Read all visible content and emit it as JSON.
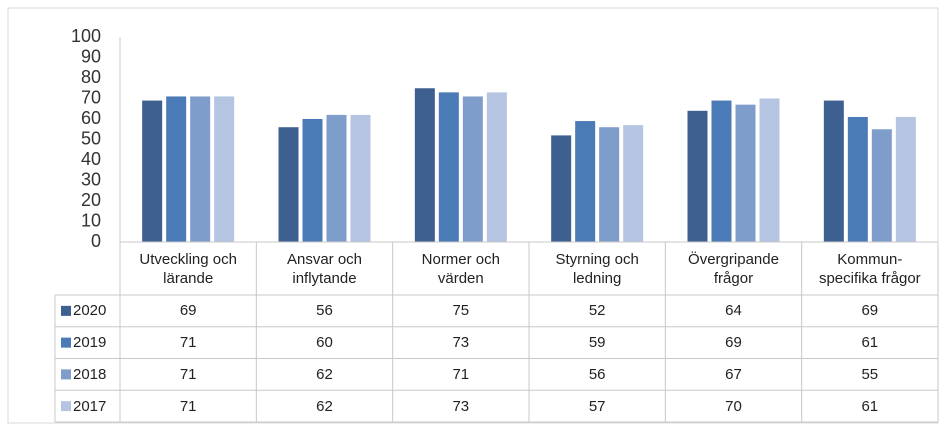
{
  "chart_data": {
    "type": "bar",
    "categories": [
      "Utveckling och\nlärande",
      "Ansvar och\ninflytande",
      "Normer och\nvärden",
      "Styrning och\nledning",
      "Övergripande\nfrågor",
      "Kommun-\nspecifika frågor"
    ],
    "series": [
      {
        "name": "2020",
        "color": "#3d6090",
        "values": [
          69,
          56,
          75,
          52,
          64,
          69
        ]
      },
      {
        "name": "2019",
        "color": "#4a7bb6",
        "values": [
          71,
          60,
          73,
          59,
          69,
          61
        ]
      },
      {
        "name": "2018",
        "color": "#7f9dcb",
        "values": [
          71,
          62,
          71,
          56,
          67,
          55
        ]
      },
      {
        "name": "2017",
        "color": "#b5c5e1",
        "values": [
          71,
          62,
          73,
          57,
          70,
          61
        ]
      }
    ],
    "ylim": [
      0,
      100
    ],
    "yticks": [
      0,
      10,
      20,
      30,
      40,
      50,
      60,
      70,
      80,
      90,
      100
    ],
    "grid": false
  }
}
